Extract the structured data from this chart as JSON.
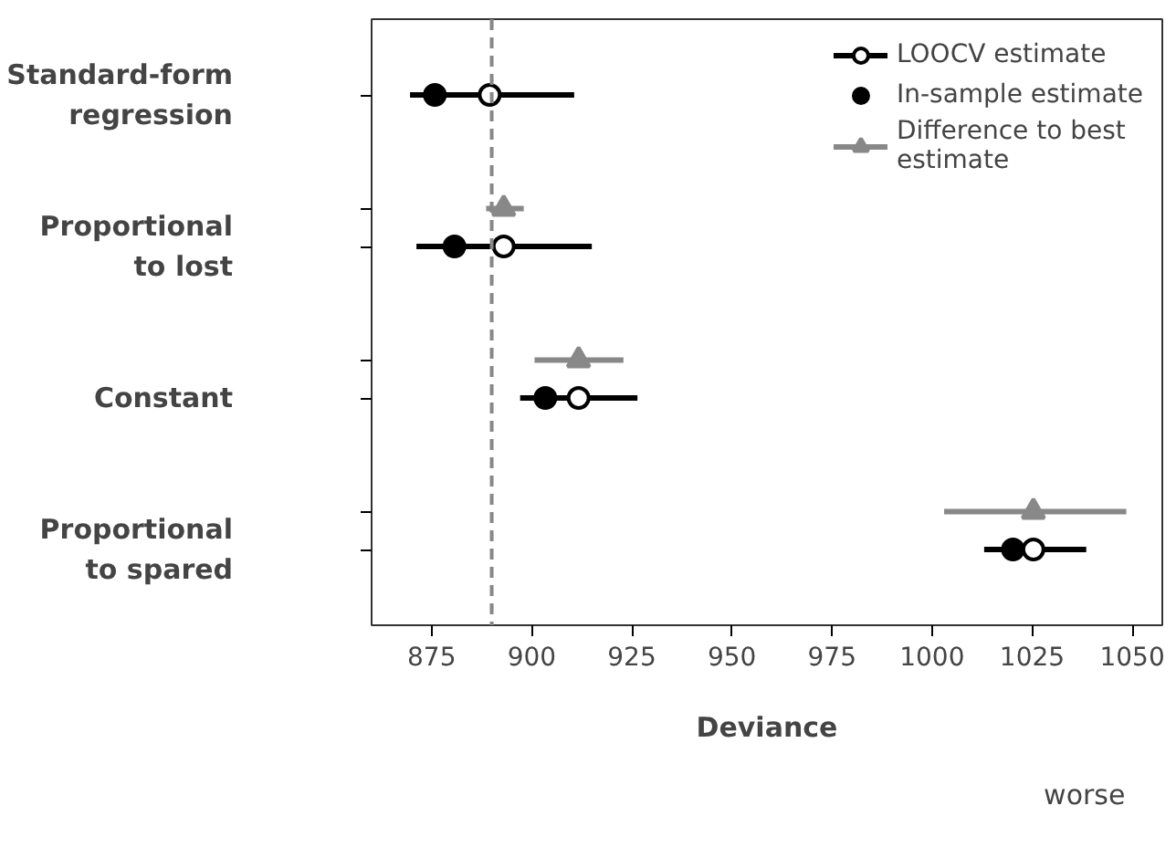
{
  "chart_data": {
    "type": "scatter",
    "xlabel": "Deviance",
    "categories": [
      "Standard-form regression",
      "Proportional to lost",
      "Constant",
      "Proportional to spared"
    ],
    "series": [
      {
        "name": "LOOCV estimate",
        "color": "#000000",
        "values": [
          889.5,
          893,
          911.7,
          1025.3
        ],
        "errors": [
          [
            869.6,
            910.6
          ],
          [
            871.2,
            915
          ],
          [
            897.1,
            926.4
          ],
          [
            1013,
            1038.5
          ]
        ]
      },
      {
        "name": "In-sample estimate",
        "color": "#000000",
        "values": [
          875.8,
          880.7,
          903.4,
          1020.2
        ]
      },
      {
        "name": "Difference to best estimate",
        "color": "#888888",
        "marker": "triangle",
        "values": [
          null,
          893,
          911.7,
          1025.3
        ],
        "errors": [
          null,
          [
            888.6,
            898
          ],
          [
            900.7,
            922.9
          ],
          [
            1003,
            1048.5
          ]
        ]
      }
    ],
    "xlim": [
      860,
      1057.5
    ],
    "xticks": [
      875,
      900,
      925,
      950,
      975,
      1000,
      1025,
      1050
    ],
    "ref_lines": [
      {
        "axis": "x",
        "value": 890,
        "color": "#888888",
        "line_style": "dashed"
      }
    ],
    "annotations": [
      "worse"
    ],
    "marker": "circle",
    "legend": "top right",
    "grid": false,
    "orientation": "horizontal"
  }
}
